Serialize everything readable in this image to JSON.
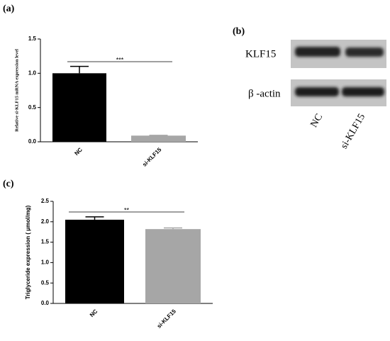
{
  "chart_data": [
    {
      "type": "bar",
      "panel_label": "(a)",
      "ylabel": "Relative si-KLF15 mRNA expression level",
      "categories": [
        "NC",
        "si-KLF15"
      ],
      "values": [
        1.0,
        0.09
      ],
      "errors": [
        0.1,
        0.005
      ],
      "colors": [
        "#000000",
        "#a6a6a6"
      ],
      "annotation": "***",
      "ylim": [
        0,
        1.5
      ],
      "yticks": [
        {
          "value": 0,
          "label": "0.0"
        },
        0.5,
        {
          "value": 1,
          "label": "1.0"
        },
        1.5
      ]
    },
    {
      "type": "bar",
      "panel_label": "(c)",
      "ylabel": "Triglyceride expression ( μmol/mg)",
      "categories": [
        "NC",
        "si-KLF15"
      ],
      "values": [
        2.05,
        1.82
      ],
      "errors": [
        0.07,
        0.03
      ],
      "colors": [
        "#000000",
        "#a6a6a6"
      ],
      "annotation": "**",
      "ylim": [
        0,
        2.5
      ],
      "yticks": [
        {
          "value": 0,
          "label": "0.0"
        },
        0.5,
        {
          "value": 1,
          "label": "1.0"
        },
        1.5,
        {
          "value": 2,
          "label": "2.0"
        },
        2.5
      ]
    }
  ],
  "blot": {
    "panel_label": "(b)",
    "rows": [
      "KLF15",
      "β -actin"
    ],
    "lanes": [
      "NC",
      "si-KLF15"
    ]
  }
}
